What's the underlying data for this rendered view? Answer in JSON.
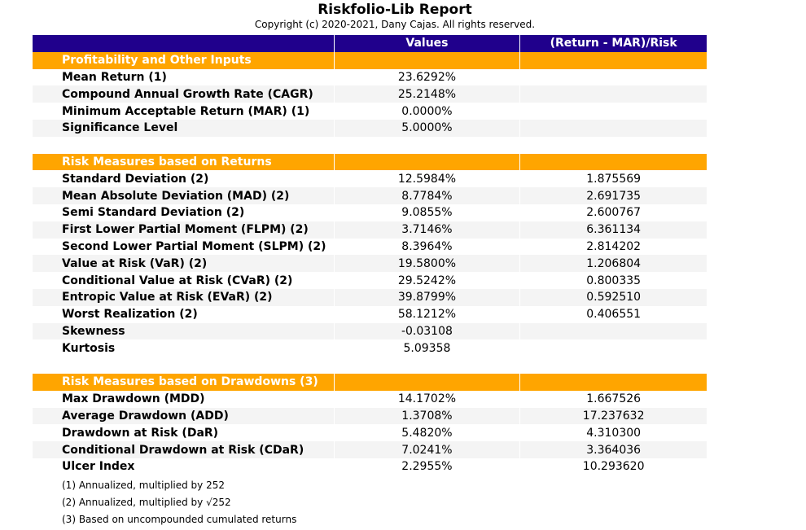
{
  "title": "Riskfolio-Lib Report",
  "subtitle": "Copyright (c) 2020-2021, Dany Cajas. All rights reserved.",
  "colors": {
    "header": "#20008c",
    "section": "#ffa500",
    "stripe": "#f4f4f4"
  },
  "header": {
    "col0": "",
    "col1": "Values",
    "col2": "(Return - MAR)/Risk"
  },
  "rows": [
    {
      "type": "section",
      "label": "Profitability and Other Inputs",
      "value": "",
      "ratio": ""
    },
    {
      "type": "data",
      "label": "Mean Return (1)",
      "value": "23.6292%",
      "ratio": ""
    },
    {
      "type": "data",
      "label": "Compound Annual Growth Rate (CAGR)",
      "value": "25.2148%",
      "ratio": ""
    },
    {
      "type": "data",
      "label": "Minimum Acceptable Return (MAR) (1)",
      "value": "0.0000%",
      "ratio": ""
    },
    {
      "type": "data",
      "label": "Significance Level",
      "value": "5.0000%",
      "ratio": ""
    },
    {
      "type": "gap",
      "label": "",
      "value": "",
      "ratio": ""
    },
    {
      "type": "section",
      "label": "Risk Measures based on Returns",
      "value": "",
      "ratio": ""
    },
    {
      "type": "data",
      "label": "Standard Deviation (2)",
      "value": "12.5984%",
      "ratio": "1.875569"
    },
    {
      "type": "data",
      "label": "Mean Absolute Deviation (MAD) (2)",
      "value": "8.7784%",
      "ratio": "2.691735"
    },
    {
      "type": "data",
      "label": "Semi Standard Deviation (2)",
      "value": "9.0855%",
      "ratio": "2.600767"
    },
    {
      "type": "data",
      "label": "First Lower Partial Moment (FLPM) (2)",
      "value": "3.7146%",
      "ratio": "6.361134"
    },
    {
      "type": "data",
      "label": "Second Lower Partial Moment (SLPM) (2)",
      "value": "8.3964%",
      "ratio": "2.814202"
    },
    {
      "type": "data",
      "label": "Value at Risk (VaR) (2)",
      "value": "19.5800%",
      "ratio": "1.206804"
    },
    {
      "type": "data",
      "label": "Conditional Value at Risk (CVaR) (2)",
      "value": "29.5242%",
      "ratio": "0.800335"
    },
    {
      "type": "data",
      "label": "Entropic Value at Risk (EVaR) (2)",
      "value": "39.8799%",
      "ratio": "0.592510"
    },
    {
      "type": "data",
      "label": "Worst Realization (2)",
      "value": "58.1212%",
      "ratio": "0.406551"
    },
    {
      "type": "data",
      "label": "Skewness",
      "value": "-0.03108",
      "ratio": ""
    },
    {
      "type": "data",
      "label": "Kurtosis",
      "value": "5.09358",
      "ratio": ""
    },
    {
      "type": "gap",
      "label": "",
      "value": "",
      "ratio": ""
    },
    {
      "type": "section",
      "label": "Risk Measures based on Drawdowns (3)",
      "value": "",
      "ratio": ""
    },
    {
      "type": "data",
      "label": "Max Drawdown (MDD)",
      "value": "14.1702%",
      "ratio": "1.667526"
    },
    {
      "type": "data",
      "label": "Average Drawdown (ADD)",
      "value": "1.3708%",
      "ratio": "17.237632"
    },
    {
      "type": "data",
      "label": "Drawdown at Risk (DaR)",
      "value": "5.4820%",
      "ratio": "4.310300"
    },
    {
      "type": "data",
      "label": "Conditional Drawdown at Risk (CDaR)",
      "value": "7.0241%",
      "ratio": "3.364036"
    },
    {
      "type": "data",
      "label": "Ulcer Index",
      "value": "2.2955%",
      "ratio": "10.293620"
    }
  ],
  "notes": [
    "(1) Annualized, multiplied by 252",
    "(2) Annualized, multiplied by √252",
    "(3) Based on uncompounded cumulated returns"
  ]
}
